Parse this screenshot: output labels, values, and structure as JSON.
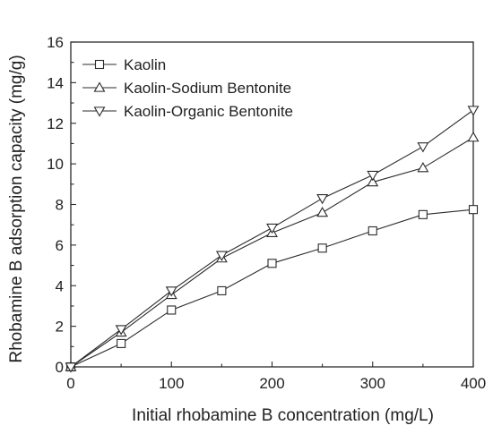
{
  "chart_data": {
    "type": "line",
    "xlabel": "Initial rhobamine B concentration (mg/L)",
    "ylabel": "Rhobamine B adsorption capacity (mg/g)",
    "xlim": [
      0,
      400
    ],
    "ylim": [
      0,
      16
    ],
    "x_ticks": [
      0,
      100,
      200,
      300,
      400
    ],
    "y_ticks": [
      0,
      2,
      4,
      6,
      8,
      10,
      12,
      14,
      16
    ],
    "grid": false,
    "legend_position": "top-left",
    "x": [
      0,
      50,
      100,
      150,
      200,
      250,
      300,
      350,
      400
    ],
    "series": [
      {
        "name": "Kaolin",
        "marker": "square",
        "values": [
          0,
          1.15,
          2.8,
          3.75,
          5.1,
          5.85,
          6.7,
          7.5,
          7.75
        ]
      },
      {
        "name": "Kaolin-Sodium Bentonite",
        "marker": "triangle-up",
        "values": [
          0,
          1.7,
          3.55,
          5.35,
          6.6,
          7.6,
          9.1,
          9.8,
          11.3
        ]
      },
      {
        "name": "Kaolin-Organic Bentonite",
        "marker": "triangle-down",
        "values": [
          0,
          1.85,
          3.75,
          5.5,
          6.85,
          8.3,
          9.45,
          10.85,
          12.65
        ]
      }
    ],
    "colors": {
      "line": "#2b2b2b",
      "marker_fill": "#ffffff"
    }
  }
}
